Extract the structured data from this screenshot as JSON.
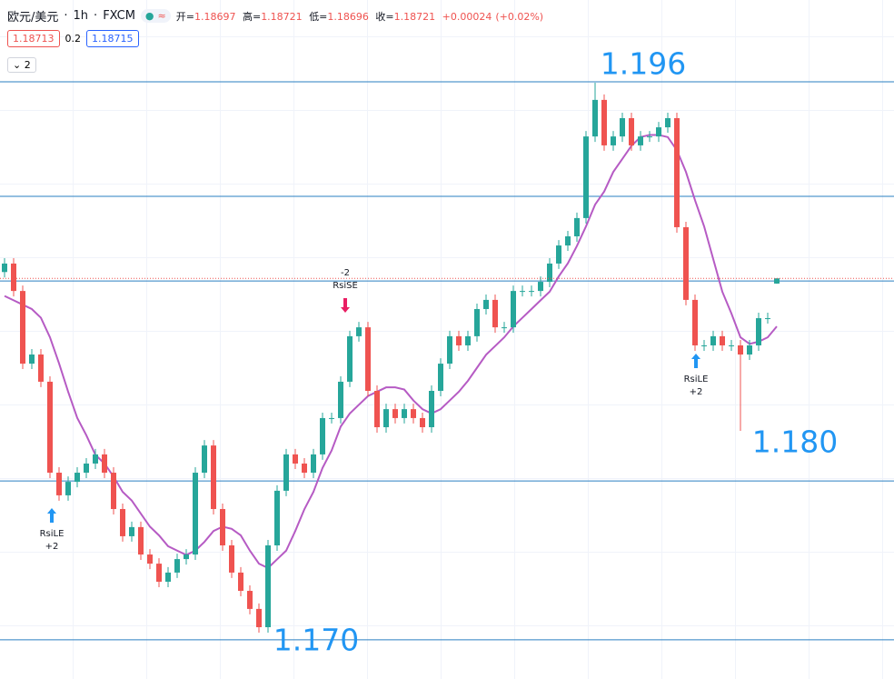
{
  "header": {
    "symbol": "欧元/美元",
    "interval": "1h",
    "source": "FXCM",
    "labels": [
      "开=",
      "高=",
      "低=",
      "收="
    ],
    "change": "+0.00024",
    "change_pct": "(+0.02%)"
  },
  "toolbar": {
    "sell": 1.18713,
    "spread": 0.2,
    "buy": 1.18715,
    "indicators": 2
  },
  "chart_data": {
    "type": "candlestick",
    "open": [
      1.1875,
      1.18789,
      1.18663,
      1.18329,
      1.18371,
      1.18246,
      1.17828,
      1.17724,
      1.17786,
      1.17828,
      1.1787,
      1.17912,
      1.17828,
      1.17661,
      1.17536,
      1.17578,
      1.17452,
      1.1741,
      1.17327,
      1.17369,
      1.17431,
      1.17452,
      1.17828,
      1.17953,
      1.17661,
      1.17494,
      1.17369,
      1.17285,
      1.17202,
      1.17118,
      1.17494,
      1.17745,
      1.17912,
      1.1787,
      1.17828,
      1.17912,
      1.18079,
      1.18079,
      1.18246,
      1.18455,
      1.18496,
      1.18204,
      1.18037,
      1.1812,
      1.18079,
      1.1812,
      1.18079,
      1.18037,
      1.18204,
      1.18329,
      1.18455,
      1.18413,
      1.18455,
      1.1858,
      1.18622,
      1.18496,
      1.18496,
      1.18663,
      1.18663,
      1.18663,
      1.18705,
      1.18789,
      1.18872,
      1.18914,
      1.18998,
      1.19373,
      1.19541,
      1.19332,
      1.19373,
      1.19457,
      1.19332,
      1.19373,
      1.19373,
      1.19415,
      1.19457,
      1.18956,
      1.18622,
      1.18413,
      1.18413,
      1.18455,
      1.18413,
      1.18413,
      1.18371,
      1.18413,
      1.18538,
      1.18697
    ],
    "high": [
      1.18814,
      1.18814,
      1.18688,
      1.18396,
      1.18396,
      1.18271,
      1.17853,
      1.17811,
      1.17853,
      1.17895,
      1.17937,
      1.17937,
      1.17853,
      1.17686,
      1.17603,
      1.17603,
      1.17477,
      1.17435,
      1.17394,
      1.17456,
      1.17477,
      1.17853,
      1.17978,
      1.17978,
      1.17686,
      1.17519,
      1.17394,
      1.1731,
      1.17227,
      1.17519,
      1.1777,
      1.17937,
      1.17937,
      1.17895,
      1.17937,
      1.18104,
      1.18104,
      1.18271,
      1.1848,
      1.18521,
      1.18521,
      1.18229,
      1.18145,
      1.18145,
      1.18145,
      1.18145,
      1.18104,
      1.18229,
      1.18354,
      1.1848,
      1.1848,
      1.1848,
      1.18605,
      1.18647,
      1.18647,
      1.18521,
      1.18688,
      1.18688,
      1.18688,
      1.1873,
      1.18814,
      1.18897,
      1.18939,
      1.19023,
      1.19398,
      1.1962,
      1.19566,
      1.19398,
      1.19482,
      1.19482,
      1.19398,
      1.19398,
      1.1944,
      1.19482,
      1.19482,
      1.18981,
      1.18647,
      1.18438,
      1.1848,
      1.1848,
      1.18438,
      1.18438,
      1.18438,
      1.18563,
      1.18563,
      1.18721
    ],
    "low": [
      1.18725,
      1.18638,
      1.18304,
      1.18304,
      1.18221,
      1.17803,
      1.17699,
      1.17699,
      1.17761,
      1.17803,
      1.17845,
      1.17803,
      1.17636,
      1.17511,
      1.17511,
      1.17427,
      1.17385,
      1.17302,
      1.17302,
      1.17344,
      1.17406,
      1.17427,
      1.17803,
      1.17636,
      1.17469,
      1.17344,
      1.1726,
      1.17177,
      1.17093,
      1.17093,
      1.17469,
      1.1772,
      1.17845,
      1.17803,
      1.17803,
      1.17887,
      1.18054,
      1.18054,
      1.18221,
      1.1843,
      1.18179,
      1.18012,
      1.18012,
      1.18054,
      1.18054,
      1.18054,
      1.18012,
      1.18012,
      1.18179,
      1.18304,
      1.18388,
      1.18388,
      1.1843,
      1.18555,
      1.18471,
      1.18471,
      1.18471,
      1.18638,
      1.18638,
      1.18638,
      1.1868,
      1.18764,
      1.18847,
      1.18889,
      1.18973,
      1.19348,
      1.19307,
      1.19307,
      1.19348,
      1.19307,
      1.19307,
      1.19348,
      1.19348,
      1.1939,
      1.18931,
      1.18597,
      1.18388,
      1.18388,
      1.18388,
      1.18388,
      1.18388,
      1.1802,
      1.18346,
      1.18388,
      1.18513,
      1.18696
    ],
    "close": [
      1.18789,
      1.18663,
      1.18329,
      1.18371,
      1.18246,
      1.17828,
      1.17724,
      1.17786,
      1.17828,
      1.1787,
      1.17912,
      1.17828,
      1.17661,
      1.17536,
      1.17578,
      1.17452,
      1.1741,
      1.17327,
      1.17369,
      1.17431,
      1.17452,
      1.17828,
      1.17953,
      1.17661,
      1.17494,
      1.17369,
      1.17285,
      1.17202,
      1.17118,
      1.17494,
      1.17745,
      1.17912,
      1.1787,
      1.17828,
      1.17912,
      1.18079,
      1.18079,
      1.18246,
      1.18455,
      1.18496,
      1.18204,
      1.18037,
      1.1812,
      1.18079,
      1.1812,
      1.18079,
      1.18037,
      1.18204,
      1.18329,
      1.18455,
      1.18413,
      1.18455,
      1.1858,
      1.18622,
      1.18496,
      1.18496,
      1.18663,
      1.18663,
      1.18663,
      1.18705,
      1.18789,
      1.18872,
      1.18914,
      1.18998,
      1.19373,
      1.19541,
      1.19332,
      1.19373,
      1.19457,
      1.19332,
      1.19373,
      1.19373,
      1.19415,
      1.19457,
      1.18956,
      1.18622,
      1.18413,
      1.18413,
      1.18455,
      1.18413,
      1.18413,
      1.18371,
      1.18413,
      1.18538,
      1.18538,
      1.18721
    ],
    "up_color": "#26a69a",
    "down_color": "#ef5350",
    "ylim": [
      1.1688,
      1.2
    ],
    "moving_average": {
      "color": "#b65bc4",
      "values": [
        1.1864,
        1.1862,
        1.186,
        1.1858,
        1.1854,
        1.1845,
        1.1833,
        1.182,
        1.1808,
        1.18,
        1.1791,
        1.1787,
        1.1781,
        1.1774,
        1.177,
        1.1764,
        1.1758,
        1.1754,
        1.1749,
        1.1747,
        1.1745,
        1.1747,
        1.1751,
        1.1756,
        1.1758,
        1.1757,
        1.1754,
        1.1747,
        1.1741,
        1.1739,
        1.1743,
        1.1747,
        1.1756,
        1.1766,
        1.1774,
        1.1785,
        1.1793,
        1.1804,
        1.181,
        1.1814,
        1.1818,
        1.182,
        1.1822,
        1.1822,
        1.1821,
        1.1816,
        1.1812,
        1.181,
        1.1812,
        1.1816,
        1.182,
        1.1825,
        1.1831,
        1.1837,
        1.1841,
        1.1845,
        1.185,
        1.1854,
        1.1858,
        1.1862,
        1.1866,
        1.1873,
        1.1879,
        1.1887,
        1.1896,
        1.1906,
        1.1912,
        1.1921,
        1.1927,
        1.1933,
        1.1937,
        1.1938,
        1.1938,
        1.1937,
        1.1931,
        1.1921,
        1.1908,
        1.1896,
        1.1881,
        1.1866,
        1.1856,
        1.1845,
        1.1842,
        1.1843,
        1.1845,
        1.185
      ]
    },
    "hlines": {
      "color": "#2a7fc1",
      "values": [
        1.19624,
        1.19098,
        1.18709,
        1.1779,
        1.1706
      ]
    },
    "annotations": [
      "1.196",
      "1.180",
      "1.170"
    ],
    "signals": [
      {
        "label": "RsiLE",
        "qty": "+2"
      },
      {
        "label": "RsiSE",
        "qty": "-2"
      },
      {
        "label": "RsiLE",
        "qty": "+2"
      }
    ]
  }
}
